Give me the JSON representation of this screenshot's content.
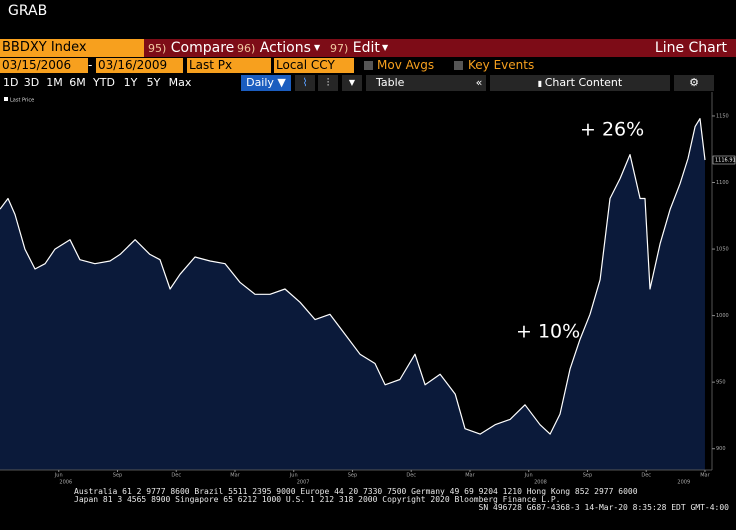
{
  "header": {
    "title": "GRAB"
  },
  "toolbar": {
    "security": "BBDXY Index",
    "menu": [
      {
        "key": "95)",
        "label": "Compare"
      },
      {
        "key": "96)",
        "label": "Actions"
      },
      {
        "key": "97)",
        "label": "Edit"
      }
    ],
    "view": "Line Chart"
  },
  "settings": {
    "start": "03/15/2006",
    "separator": "-",
    "end": "03/16/2009",
    "field": "Last Px",
    "currency": "Local CCY",
    "options": [
      "Mov Avgs",
      "Key Events"
    ]
  },
  "periods": [
    "1D",
    "3D",
    "1M",
    "6M",
    "YTD",
    "1Y",
    "5Y",
    "Max"
  ],
  "frequency": "Daily ▼",
  "table": "Table",
  "collapse": "«",
  "chart_content": "Chart Content",
  "chart_data": {
    "type": "area",
    "fill_color": "#0b1a3a",
    "series": [
      {
        "name": "Last Price",
        "color": "#ffffff",
        "x": [
          2006.17,
          2006.204,
          2006.234,
          2006.276,
          2006.319,
          2006.362,
          2006.404,
          2006.468,
          2006.51,
          2006.574,
          2006.638,
          2006.681,
          2006.745,
          2006.808,
          2006.851,
          2006.894,
          2006.936,
          2007.0,
          2007.064,
          2007.128,
          2007.191,
          2007.255,
          2007.319,
          2007.383,
          2007.447,
          2007.511,
          2007.574,
          2007.638,
          2007.702,
          2007.766,
          2007.809,
          2007.872,
          2007.936,
          2007.979,
          2008.043,
          2008.107,
          2008.149,
          2008.213,
          2008.277,
          2008.341,
          2008.404,
          2008.468,
          2008.511,
          2008.553,
          2008.596,
          2008.638,
          2008.681,
          2008.724,
          2008.766,
          2008.809,
          2008.851,
          2008.894,
          2008.915,
          2008.936,
          2008.979,
          2009.022,
          2009.064,
          2009.098,
          2009.128,
          2009.149,
          2009.17
        ],
        "values": [
          1080,
          1088,
          1076,
          1050,
          1035,
          1039,
          1050,
          1057,
          1042,
          1039,
          1041,
          1046,
          1057,
          1046,
          1042,
          1020,
          1031,
          1044,
          1041,
          1039,
          1025,
          1016,
          1016,
          1020,
          1010,
          997,
          1001,
          986,
          971,
          964,
          948,
          952,
          971,
          948,
          956,
          941,
          915,
          911,
          918,
          922,
          933,
          918,
          911,
          926,
          960,
          982,
          1001,
          1027,
          1088,
          1103,
          1121,
          1088,
          1088,
          1020,
          1054,
          1080,
          1099,
          1118,
          1142,
          1148,
          1116.91
        ]
      }
    ],
    "last_price": 1116.91,
    "xlim": [
      2006.17,
      2009.2
    ],
    "xticks": [
      {
        "value": 2006.42,
        "label": "Jun"
      },
      {
        "value": 2006.67,
        "label": "Sep"
      },
      {
        "value": 2006.92,
        "label": "Dec"
      },
      {
        "value": 2007.17,
        "label": "Mar"
      },
      {
        "value": 2007.42,
        "label": "Jun"
      },
      {
        "value": 2007.67,
        "label": "Sep"
      },
      {
        "value": 2007.92,
        "label": "Dec"
      },
      {
        "value": 2008.17,
        "label": "Mar"
      },
      {
        "value": 2008.42,
        "label": "Jun"
      },
      {
        "value": 2008.67,
        "label": "Sep"
      },
      {
        "value": 2008.92,
        "label": "Dec"
      },
      {
        "value": 2009.17,
        "label": "Mar"
      }
    ],
    "year_ticks": [
      {
        "value": 2006.45,
        "label": "2006"
      },
      {
        "value": 2007.46,
        "label": "2007"
      },
      {
        "value": 2008.47,
        "label": "2008"
      },
      {
        "value": 2009.08,
        "label": "2009"
      }
    ],
    "ylim": [
      884,
      1168
    ],
    "yticks": [
      900,
      950,
      1000,
      1050,
      1100,
      1150
    ],
    "annotations": [
      "+ 26%",
      "+ 10%"
    ]
  },
  "footer": [
    "Australia 61 2 9777 8600 Brazil 5511 2395 9000 Europe 44 20 7330 7500 Germany 49 69 9204 1210 Hong Kong 852 2977 6000",
    "Japan 81 3 4565 8900       Singapore 65 6212 1000       U.S. 1 212 318 2000         Copyright 2020 Bloomberg Finance L.P.",
    "SN 496728 G687-4368-3 14-Mar-20  8:35:28 EDT  GMT-4:00"
  ]
}
